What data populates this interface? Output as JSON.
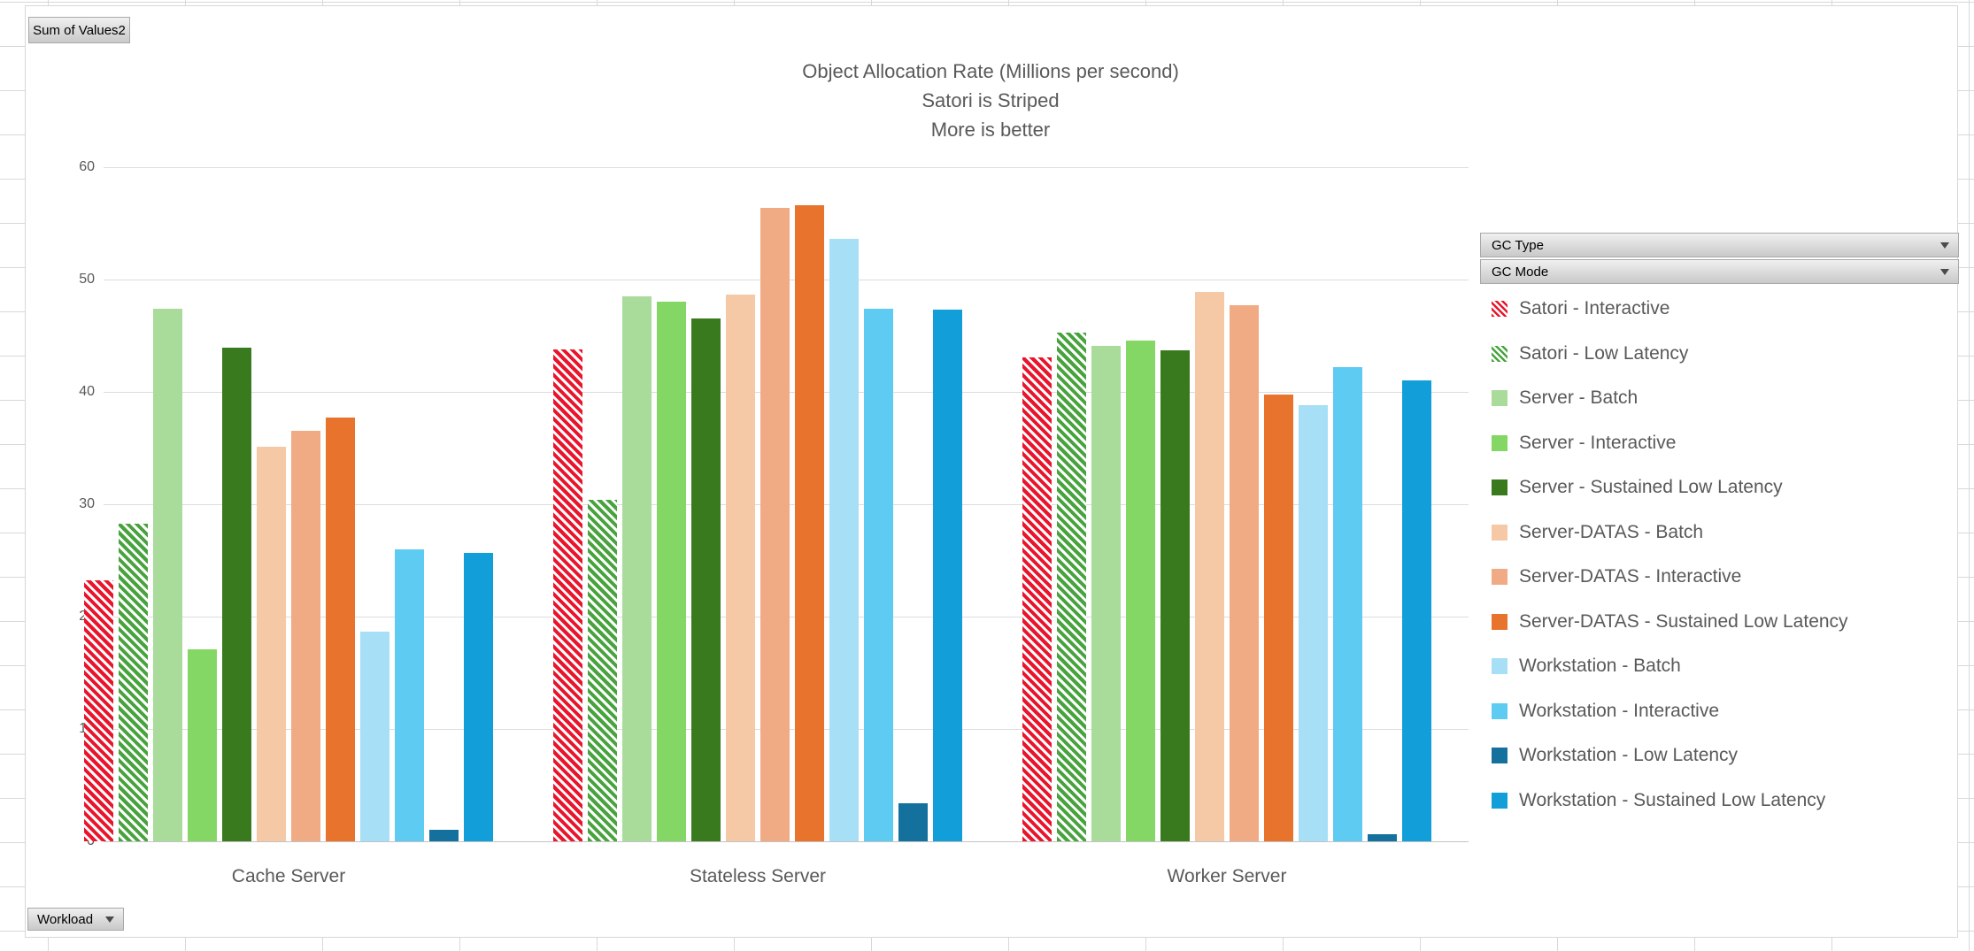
{
  "pivot_controls": {
    "values_field_button": "Sum of Values2",
    "axis_field_button": "Workload",
    "legend_field_buttons": [
      "GC Type",
      "GC Mode"
    ]
  },
  "chart_data": {
    "type": "bar",
    "title_lines": [
      "Object Allocation Rate (Millions per second)",
      "Satori is Striped",
      "More is better"
    ],
    "categories": [
      "Cache Server",
      "Stateless Server",
      "Worker Server"
    ],
    "y_axis": {
      "min": 0,
      "max": 60,
      "tick_interval": 10,
      "tick_labels": [
        "0",
        "10",
        "20",
        "30",
        "40",
        "50",
        "60"
      ]
    },
    "grid": true,
    "legend_position": "right",
    "series": [
      {
        "name": "Satori - Interactive",
        "color": "#E9152C",
        "pattern": "diagonal-stripes",
        "values": [
          23.2,
          43.8,
          43.1
        ]
      },
      {
        "name": "Satori - Low Latency",
        "color": "#48A33E",
        "pattern": "diagonal-stripes",
        "values": [
          28.3,
          30.4,
          45.3
        ]
      },
      {
        "name": "Server - Batch",
        "color": "#A9DB9B",
        "pattern": "solid",
        "values": [
          47.4,
          48.5,
          44.1
        ]
      },
      {
        "name": "Server - Interactive",
        "color": "#85D765",
        "pattern": "solid",
        "values": [
          17.1,
          48.0,
          44.6
        ]
      },
      {
        "name": "Server - Sustained Low Latency",
        "color": "#3A7A1E",
        "pattern": "solid",
        "values": [
          43.9,
          46.5,
          43.7
        ]
      },
      {
        "name": "Server-DATAS - Batch",
        "color": "#F6C9A6",
        "pattern": "solid",
        "values": [
          35.1,
          48.7,
          48.9
        ]
      },
      {
        "name": "Server-DATAS - Interactive",
        "color": "#F1AB84",
        "pattern": "solid",
        "values": [
          36.5,
          56.4,
          47.7
        ]
      },
      {
        "name": "Server-DATAS - Sustained Low Latency",
        "color": "#E7732C",
        "pattern": "solid",
        "values": [
          37.7,
          56.6,
          39.8
        ]
      },
      {
        "name": "Workstation - Batch",
        "color": "#A6DFF6",
        "pattern": "solid",
        "values": [
          18.7,
          53.6,
          38.8
        ]
      },
      {
        "name": "Workstation - Interactive",
        "color": "#5ECBF2",
        "pattern": "solid",
        "values": [
          26.0,
          47.4,
          42.2
        ]
      },
      {
        "name": "Workstation - Low Latency",
        "color": "#14719E",
        "pattern": "solid",
        "values": [
          1.0,
          3.4,
          0.6
        ]
      },
      {
        "name": "Workstation - Sustained Low Latency",
        "color": "#129FD9",
        "pattern": "solid",
        "values": [
          25.7,
          47.3,
          41.0
        ]
      }
    ]
  }
}
